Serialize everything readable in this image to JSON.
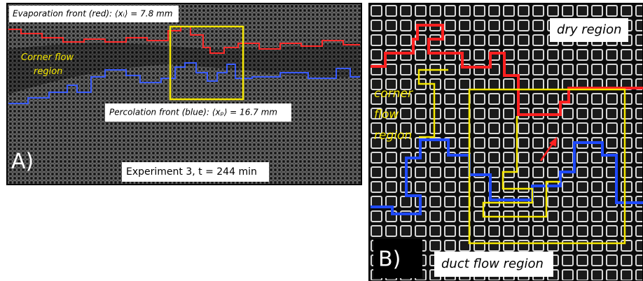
{
  "panel_a": {
    "evaporation_label": "Evaporation front (red): ⟨xᵢ⟩ = 7.8 mm",
    "corner_label": "Corner flow region",
    "percolation_label": "Percolation front (blue): ⟨xₚ⟩ = 16.7 mm",
    "panel_letter": "A)",
    "caption": "Experiment 3, t = 244 min"
  },
  "panel_b": {
    "dry_label": "dry region",
    "corner_label": "corner flow region",
    "panel_letter": "B)",
    "duct_label": "duct flow region"
  }
}
